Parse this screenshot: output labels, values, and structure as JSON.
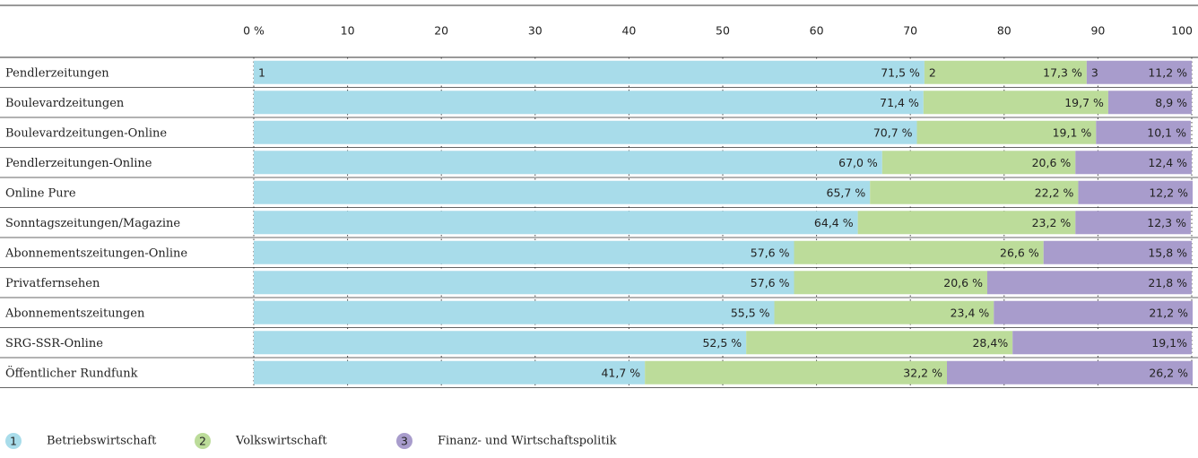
{
  "chart_data": {
    "type": "stacked-bar-horizontal",
    "categories": [
      "Pendlerzeitungen",
      "Boulevardzeitungen",
      "Boulevardzeitungen-Online",
      "Pendlerzeitungen-Online",
      "Online Pure",
      "Sonntagszeitungen/Magazine",
      "Abonnementszeitungen-Online",
      "Privatfernsehen",
      "Abonnementszeitungen",
      "SRG-SSR-Online",
      "Öffentlicher Rundfunk"
    ],
    "series": [
      {
        "name": "Betriebswirtschaft",
        "marker": "1",
        "color": "#a8dcea",
        "values": [
          71.5,
          71.4,
          70.7,
          67.0,
          65.7,
          64.4,
          57.6,
          57.6,
          55.5,
          52.5,
          41.7
        ],
        "value_labels": [
          "71,5 %",
          "71,4 %",
          "70,7 %",
          "67,0 %",
          "65,7 %",
          "64,4 %",
          "57,6 %",
          "57,6 %",
          "55,5 %",
          "52,5 %",
          "41,7 %"
        ]
      },
      {
        "name": "Volkswirtschaft",
        "marker": "2",
        "color": "#bcdc9a",
        "values": [
          17.3,
          19.7,
          19.1,
          20.6,
          22.2,
          23.2,
          26.6,
          20.6,
          23.4,
          28.4,
          32.2
        ],
        "value_labels": [
          "17,3 %",
          "19,7 %",
          "19,1 %",
          "20,6 %",
          "22,2 %",
          "23,2 %",
          "26,6 %",
          "20,6 %",
          "23,4 %",
          "28,4%",
          "32,2 %"
        ]
      },
      {
        "name": "Finanz- und Wirtschaftspolitik",
        "marker": "3",
        "color": "#a89ccc",
        "values": [
          11.2,
          8.9,
          10.1,
          12.4,
          12.2,
          12.3,
          15.8,
          21.8,
          21.2,
          19.1,
          26.2
        ],
        "value_labels": [
          "11,2 %",
          "8,9 %",
          "10,1 %",
          "12,4 %",
          "12,2 %",
          "12,3 %",
          "15,8 %",
          "21,8 %",
          "21,2 %",
          "19,1%",
          "26,2 %"
        ]
      }
    ],
    "xlim": [
      0,
      100
    ],
    "xticks": [
      {
        "value": 0,
        "label": "0 %"
      },
      10,
      20,
      30,
      40,
      50,
      60,
      70,
      80,
      90,
      100
    ],
    "grid": true,
    "legend": "bottom"
  }
}
